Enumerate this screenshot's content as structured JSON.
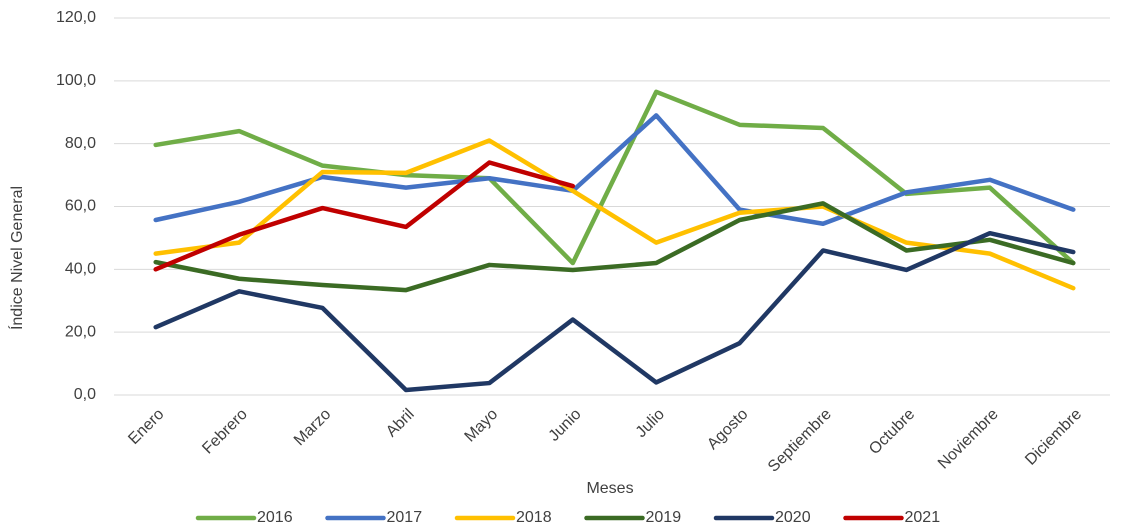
{
  "chart_data": {
    "type": "line",
    "x_label": "Meses",
    "y_label": "Índice Nivel General",
    "categories": [
      "Enero",
      "Febrero",
      "Marzo",
      "Abril",
      "Mayo",
      "Junio",
      "Julio",
      "Agosto",
      "Septiembre",
      "Octubre",
      "Noviembre",
      "Diciembre"
    ],
    "series": [
      {
        "name": "2016",
        "color": "#70ad47",
        "values": [
          79.6,
          84,
          73,
          70,
          69,
          42,
          96.5,
          86,
          85,
          64,
          66,
          42
        ]
      },
      {
        "name": "2017",
        "color": "#4472c4",
        "values": [
          55.7,
          61.5,
          69.4,
          66,
          69,
          65,
          89,
          59,
          54.5,
          64.5,
          68.5,
          59
        ]
      },
      {
        "name": "2018",
        "color": "#ffc000",
        "values": [
          45,
          48.5,
          71,
          70.7,
          81,
          65,
          48.5,
          58,
          60,
          48.5,
          45,
          34
        ]
      },
      {
        "name": "2019",
        "color": "#3b6b24",
        "values": [
          42.3,
          37,
          35,
          33.4,
          41.4,
          39.8,
          42,
          55.7,
          61,
          46,
          49.4,
          42
        ]
      },
      {
        "name": "2020",
        "color": "#203864",
        "values": [
          21.6,
          33,
          27.7,
          1.6,
          3.8,
          24,
          4,
          16.5,
          46,
          39.8,
          51.5,
          45.5
        ]
      },
      {
        "name": "2021",
        "color": "#c00000",
        "values": [
          40,
          51,
          59.5,
          53.5,
          74,
          66.5,
          null,
          null,
          null,
          null,
          null,
          null
        ]
      }
    ],
    "ylim": [
      0,
      120
    ],
    "yticks": [
      {
        "value": 0,
        "label": "0,0"
      },
      {
        "value": 20,
        "label": "20,0"
      },
      {
        "value": 40,
        "label": "40,0"
      },
      {
        "value": 60,
        "label": "60,0"
      },
      {
        "value": 80,
        "label": "80,0"
      },
      {
        "value": 100,
        "label": "100,0"
      },
      {
        "value": 120,
        "label": "120,0"
      }
    ],
    "grid": true,
    "legend": "bottom"
  }
}
